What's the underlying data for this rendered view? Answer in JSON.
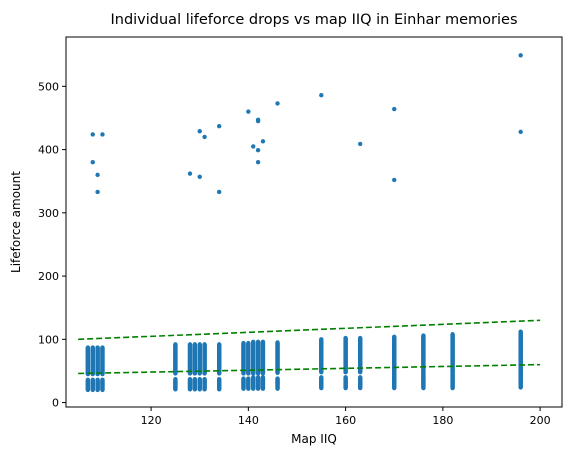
{
  "chart_data": {
    "type": "scatter",
    "title": "Individual lifeforce drops vs map IIQ in Einhar memories",
    "xlabel": "Map IIQ",
    "ylabel": "Lifeforce amount",
    "xlim": [
      102.5,
      204.5
    ],
    "ylim": [
      -7,
      578
    ],
    "xticks": [
      120,
      140,
      160,
      180,
      200
    ],
    "yticks": [
      0,
      100,
      200,
      300,
      400,
      500
    ],
    "grid": false,
    "marker_color": "#1f77b4",
    "trend_color": "#008000",
    "clusters": {
      "low_band": {
        "columns": [
          {
            "x": 107,
            "ymin": 20,
            "ymax": 36
          },
          {
            "x": 108,
            "ymin": 20,
            "ymax": 36
          },
          {
            "x": 109,
            "ymin": 20,
            "ymax": 36
          },
          {
            "x": 110,
            "ymin": 20,
            "ymax": 36
          },
          {
            "x": 125,
            "ymin": 21,
            "ymax": 37
          },
          {
            "x": 128,
            "ymin": 21,
            "ymax": 37
          },
          {
            "x": 129,
            "ymin": 21,
            "ymax": 37
          },
          {
            "x": 130,
            "ymin": 21,
            "ymax": 37
          },
          {
            "x": 131,
            "ymin": 21,
            "ymax": 37
          },
          {
            "x": 134,
            "ymin": 21,
            "ymax": 37
          },
          {
            "x": 139,
            "ymin": 22,
            "ymax": 38
          },
          {
            "x": 140,
            "ymin": 22,
            "ymax": 38
          },
          {
            "x": 141,
            "ymin": 22,
            "ymax": 40
          },
          {
            "x": 142,
            "ymin": 22,
            "ymax": 40
          },
          {
            "x": 143,
            "ymin": 22,
            "ymax": 40
          },
          {
            "x": 146,
            "ymin": 22,
            "ymax": 38
          },
          {
            "x": 155,
            "ymin": 23,
            "ymax": 40
          },
          {
            "x": 160,
            "ymin": 23,
            "ymax": 40
          },
          {
            "x": 163,
            "ymin": 23,
            "ymax": 40
          },
          {
            "x": 170,
            "ymin": 23,
            "ymax": 46
          },
          {
            "x": 176,
            "ymin": 23,
            "ymax": 46
          },
          {
            "x": 182,
            "ymin": 23,
            "ymax": 46
          },
          {
            "x": 196,
            "ymin": 24,
            "ymax": 50
          }
        ]
      },
      "mid_band": {
        "columns": [
          {
            "x": 107,
            "ymin": 45,
            "ymax": 87
          },
          {
            "x": 108,
            "ymin": 45,
            "ymax": 87
          },
          {
            "x": 109,
            "ymin": 45,
            "ymax": 87
          },
          {
            "x": 110,
            "ymin": 45,
            "ymax": 87
          },
          {
            "x": 125,
            "ymin": 46,
            "ymax": 92
          },
          {
            "x": 128,
            "ymin": 46,
            "ymax": 92
          },
          {
            "x": 129,
            "ymin": 46,
            "ymax": 92
          },
          {
            "x": 130,
            "ymin": 46,
            "ymax": 92
          },
          {
            "x": 131,
            "ymin": 46,
            "ymax": 92
          },
          {
            "x": 134,
            "ymin": 46,
            "ymax": 92
          },
          {
            "x": 139,
            "ymin": 46,
            "ymax": 94
          },
          {
            "x": 140,
            "ymin": 46,
            "ymax": 94
          },
          {
            "x": 141,
            "ymin": 46,
            "ymax": 96
          },
          {
            "x": 142,
            "ymin": 46,
            "ymax": 96
          },
          {
            "x": 143,
            "ymin": 46,
            "ymax": 96
          },
          {
            "x": 146,
            "ymin": 47,
            "ymax": 95
          },
          {
            "x": 155,
            "ymin": 48,
            "ymax": 100
          },
          {
            "x": 160,
            "ymin": 48,
            "ymax": 102
          },
          {
            "x": 163,
            "ymin": 48,
            "ymax": 102
          },
          {
            "x": 170,
            "ymin": 48,
            "ymax": 104
          },
          {
            "x": 176,
            "ymin": 48,
            "ymax": 106
          },
          {
            "x": 182,
            "ymin": 48,
            "ymax": 108
          },
          {
            "x": 196,
            "ymin": 48,
            "ymax": 112
          }
        ]
      }
    },
    "outliers": [
      {
        "x": 108,
        "y": 424
      },
      {
        "x": 110,
        "y": 424
      },
      {
        "x": 108,
        "y": 380
      },
      {
        "x": 109,
        "y": 360
      },
      {
        "x": 109,
        "y": 333
      },
      {
        "x": 128,
        "y": 362
      },
      {
        "x": 130,
        "y": 429
      },
      {
        "x": 130,
        "y": 357
      },
      {
        "x": 131,
        "y": 420
      },
      {
        "x": 134,
        "y": 437
      },
      {
        "x": 134,
        "y": 333
      },
      {
        "x": 140,
        "y": 460
      },
      {
        "x": 141,
        "y": 405
      },
      {
        "x": 142,
        "y": 447
      },
      {
        "x": 142,
        "y": 445
      },
      {
        "x": 142,
        "y": 399
      },
      {
        "x": 142,
        "y": 380
      },
      {
        "x": 143,
        "y": 413
      },
      {
        "x": 146,
        "y": 473
      },
      {
        "x": 155,
        "y": 486
      },
      {
        "x": 163,
        "y": 409
      },
      {
        "x": 170,
        "y": 464
      },
      {
        "x": 170,
        "y": 352
      },
      {
        "x": 196,
        "y": 549
      },
      {
        "x": 196,
        "y": 428
      }
    ],
    "trend_lines": [
      {
        "x": [
          105,
          200
        ],
        "y": [
          100,
          130
        ],
        "style": "dashed"
      },
      {
        "x": [
          105,
          200
        ],
        "y": [
          46,
          60
        ],
        "style": "dashed"
      }
    ]
  }
}
